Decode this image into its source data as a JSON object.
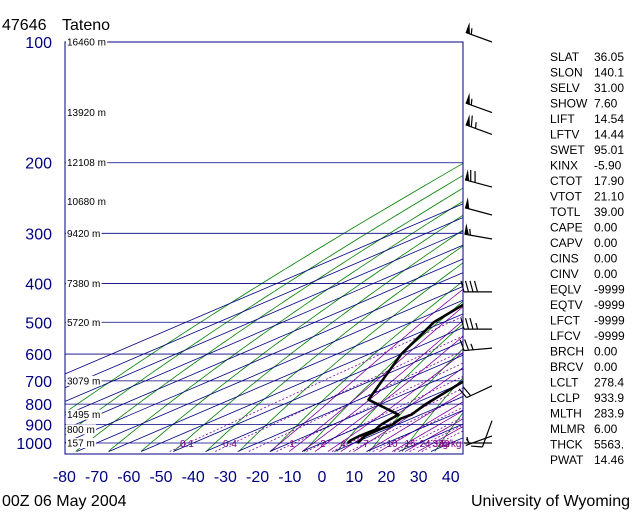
{
  "header": {
    "station_id": "47646",
    "station_name": "Tateno"
  },
  "footer": {
    "time": "00Z 06 May 2004",
    "source": "University of Wyoming"
  },
  "chart_data": {
    "type": "line",
    "title": "47646 Tateno",
    "xlabel": "",
    "ylabel": "",
    "x_ticks": [
      -80,
      -70,
      -60,
      -50,
      -40,
      -30,
      -20,
      -10,
      0,
      10,
      20,
      30,
      40
    ],
    "xlim": [
      -80,
      40
    ],
    "y_scale": "log-pressure",
    "y_ticks": [
      100,
      200,
      300,
      400,
      500,
      600,
      700,
      800,
      900,
      1000
    ],
    "ylim": [
      1050,
      100
    ],
    "grid": true,
    "height_labels": [
      {
        "p": 100,
        "text": "16460 m"
      },
      {
        "p": 150,
        "text": "13920 m"
      },
      {
        "p": 200,
        "text": "12108 m"
      },
      {
        "p": 250,
        "text": "10680 m"
      },
      {
        "p": 300,
        "text": "9420 m"
      },
      {
        "p": 400,
        "text": "7380 m"
      },
      {
        "p": 500,
        "text": "5720 m"
      },
      {
        "p": 700,
        "text": "3079 m"
      },
      {
        "p": 850,
        "text": "1495 m"
      },
      {
        "p": 925,
        "text": "800 m"
      },
      {
        "p": 1000,
        "text": "157 m"
      }
    ],
    "mixing_ratio_labels": [
      "0.1",
      "0.4",
      "1",
      "2",
      "4",
      "7",
      "10",
      "16",
      "24",
      "32",
      "40",
      "g/kg"
    ],
    "series": [
      {
        "name": "Temperature",
        "values": [
          {
            "p": 1000,
            "t": 11.0
          },
          {
            "p": 985,
            "t": 10.0
          },
          {
            "p": 960,
            "t": 8.2
          },
          {
            "p": 925,
            "t": 8.0
          },
          {
            "p": 900,
            "t": 8.5
          },
          {
            "p": 870,
            "t": 6.8
          },
          {
            "p": 850,
            "t": 7.2
          },
          {
            "p": 800,
            "t": 4.0
          },
          {
            "p": 700,
            "t": -1.0
          },
          {
            "p": 600,
            "t": -10.2
          },
          {
            "p": 500,
            "t": -20.0
          },
          {
            "p": 400,
            "t": -31.3
          },
          {
            "p": 340,
            "t": -37.5
          },
          {
            "p": 310,
            "t": -41.6
          },
          {
            "p": 300,
            "t": -42.8
          },
          {
            "p": 285,
            "t": -43.8
          },
          {
            "p": 260,
            "t": -48.0
          },
          {
            "p": 220,
            "t": -53.4
          },
          {
            "p": 200,
            "t": -60.0
          },
          {
            "p": 190,
            "t": -59.5
          },
          {
            "p": 150,
            "t": -58.0
          },
          {
            "p": 130,
            "t": -59.0
          },
          {
            "p": 110,
            "t": -61.7
          },
          {
            "p": 105,
            "t": -62.8
          },
          {
            "p": 100,
            "t": -62.0
          }
        ]
      },
      {
        "name": "Dewpoint",
        "values": [
          {
            "p": 1000,
            "t": 8.0
          },
          {
            "p": 985,
            "t": 7.0
          },
          {
            "p": 960,
            "t": 6.5
          },
          {
            "p": 925,
            "t": 6.8
          },
          {
            "p": 900,
            "t": 5.0
          },
          {
            "p": 875,
            "t": 4.0
          },
          {
            "p": 860,
            "t": 3.5
          },
          {
            "p": 850,
            "t": 3.2
          },
          {
            "p": 780,
            "t": -17.0
          },
          {
            "p": 700,
            "t": -26.5
          },
          {
            "p": 600,
            "t": -40.0
          },
          {
            "p": 500,
            "t": -53.0
          },
          {
            "p": 400,
            "t": -61.0
          },
          {
            "p": 370,
            "t": -49.0
          },
          {
            "p": 340,
            "t": -43.0
          },
          {
            "p": 315,
            "t": -42.0
          },
          {
            "p": 300,
            "t": -43.0
          },
          {
            "p": 285,
            "t": -47.0
          },
          {
            "p": 270,
            "t": -47.5
          }
        ]
      }
    ],
    "winds": [
      {
        "p": 100,
        "dir": 290,
        "kt": 55
      },
      {
        "p": 150,
        "dir": 290,
        "kt": 55
      },
      {
        "p": 170,
        "dir": 290,
        "kt": 65
      },
      {
        "p": 230,
        "dir": 285,
        "kt": 70
      },
      {
        "p": 270,
        "dir": 285,
        "kt": 50
      },
      {
        "p": 310,
        "dir": 280,
        "kt": 55
      },
      {
        "p": 420,
        "dir": 270,
        "kt": 40
      },
      {
        "p": 520,
        "dir": 270,
        "kt": 35
      },
      {
        "p": 580,
        "dir": 265,
        "kt": 25
      },
      {
        "p": 720,
        "dir": 245,
        "kt": 20
      },
      {
        "p": 880,
        "dir": 200,
        "kt": 10
      },
      {
        "p": 960,
        "dir": 250,
        "kt": 5
      },
      {
        "p": 1000,
        "dir": 270,
        "kt": 5
      }
    ]
  },
  "indices": [
    {
      "label": "SLAT",
      "value": "36.05"
    },
    {
      "label": "SLON",
      "value": "140.1"
    },
    {
      "label": "SELV",
      "value": "31.00"
    },
    {
      "label": "SHOW",
      "value": "7.60"
    },
    {
      "label": "LIFT",
      "value": "14.54"
    },
    {
      "label": "LFTV",
      "value": "14.44"
    },
    {
      "label": "SWET",
      "value": "95.01"
    },
    {
      "label": "KINX",
      "value": "-5.90"
    },
    {
      "label": "CTOT",
      "value": "17.90"
    },
    {
      "label": "VTOT",
      "value": "21.10"
    },
    {
      "label": "TOTL",
      "value": "39.00"
    },
    {
      "label": "CAPE",
      "value": "0.00"
    },
    {
      "label": "CAPV",
      "value": "0.00"
    },
    {
      "label": "CINS",
      "value": "0.00"
    },
    {
      "label": "CINV",
      "value": "0.00"
    },
    {
      "label": "EQLV",
      "value": "-9999"
    },
    {
      "label": "EQTV",
      "value": "-9999"
    },
    {
      "label": "LFCT",
      "value": "-9999"
    },
    {
      "label": "LFCV",
      "value": "-9999"
    },
    {
      "label": "BRCH",
      "value": "0.00"
    },
    {
      "label": "BRCV",
      "value": "0.00"
    },
    {
      "label": "LCLT",
      "value": "278.4"
    },
    {
      "label": "LCLP",
      "value": "933.9"
    },
    {
      "label": "MLTH",
      "value": "283.9"
    },
    {
      "label": "MLMR",
      "value": "6.00"
    },
    {
      "label": "THCK",
      "value": "5563."
    },
    {
      "label": "PWAT",
      "value": "14.46"
    }
  ],
  "colors": {
    "grid": "#000080",
    "dry_adiabat": "#008000",
    "moist_adiabat": "#8000a0",
    "profile": "#000000",
    "axis_text": "#000080"
  }
}
